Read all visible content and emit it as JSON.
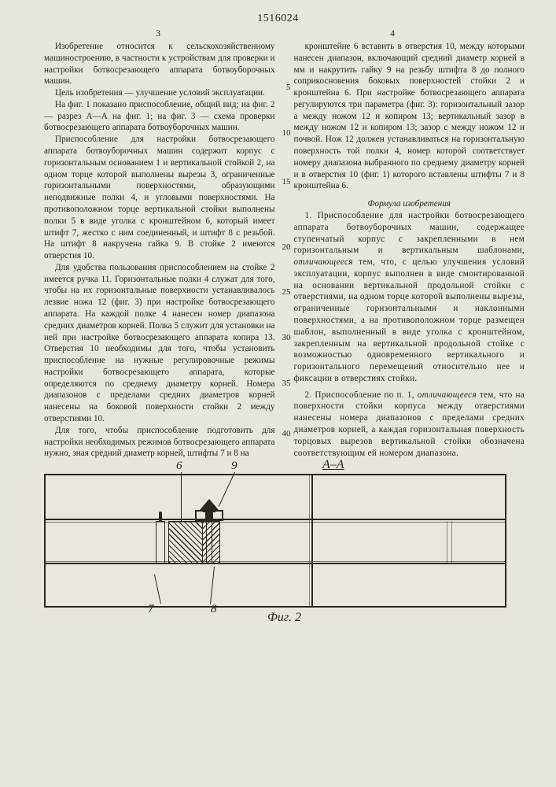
{
  "docnum": "1516024",
  "page_left": "3",
  "page_right": "4",
  "left_column": [
    "Изобретение относится к сельскохозяйственному машиностроению, в частности к устройствам для проверки и настройки ботвосрезающего аппарата ботвоуборочных машин.",
    "Цель изобретения — улучшение условий эксплуатации.",
    "На фиг. 1 показано приспособление, общий вид; на фиг. 2 — разрез А—А на фиг. 1; на фиг. 3 — схема проверки ботвосрезающего аппарата ботвоуборочных машин.",
    "Приспособление для настройки ботвосрезающего аппарата ботвоуборочных машин содержит корпус с горизонтальным основанием 1 и вертикальной стойкой 2, на одном торце которой выполнены вырезы 3, ограниченные горизонтальными поверхностями, образующими неподвижные полки 4, и угловыми поверхностями. На противоположном торце вертикальной стойки выполнены полки 5 в виде уголка с кронштейном 6, который имеет штифт 7, жестко с ним соединенный, и штифт 8 с резьбой. На штифт 8 накручена гайка 9. В стойке 2 имеются отверстия 10.",
    "Для удобства пользования приспособлением на стойке 2 имеется ручка 11. Горизонтальные полки 4 служат для того, чтобы на их горизонтальные поверхности устанавливалось лезвие ножа 12 (фиг. 3) при настройке ботвосрезающего аппарата. На каждой полке 4 нанесен номер диапазона средних диаметров корней. Полка 5 служит для установки на ней при настройке ботвосрезающего аппарата копира 13. Отверстия 10 необходимы для того, чтобы установить приспособление на нужные регулировочные режимы настройки ботвосрезающего аппарата, которые определяются по среднему диаметру корней. Номера диапазонов с пределами средних диаметров корней нанесены на боковой поверхности стойки 2 между отверстиями 10.",
    "Для того, чтобы приспособление подготовить для настройки необходимых режимов ботвосрезающего аппарата нужно, зная средний диаметр корней, штифты 7 и 8 на"
  ],
  "right_top": [
    "кронштейне 6 вставить в отверстия 10, между которыми нанесен диапазон, включающий средний диаметр корней в мм и накрутить гайку 9 на резьбу штифта 8 до полного соприкосновения боковых поверхностей стойки 2 и кронштейна 6. При настройке ботвосрезающего аппарата регулируются три параметра (фиг. 3): горизонтальный зазор а между ножом 12 и копиром 13; вертикальный зазор в между ножом 12 и копиром 13; зазор с между ножом 12 и почвой. Нож 12 должен устанавливаться на горизонтальную поверхность той полки 4, номер которой соответствует номеру диапазона выбранного по среднему диаметру корней и в отверстия 10 (фиг. 1) которого вставлены штифты 7 и 8 кронштейна 6."
  ],
  "formula_title": "Формула изобретения",
  "claims": [
    "1. Приспособление для настройки ботвосрезающего аппарата ботвоуборочных машин, содержащее ступенчатый корпус с закрепленными в нем горизонтальным и вертикальным шаблонами, <span class=\"em\">отличающееся</span> тем, что, с целью улучшения условий эксплуатации, корпус выполнен в виде смонтированной на основании вертикальной продольной стойки с отверстиями, на одном торце которой выполнены вырезы, ограниченные горизонтальными и наклонными поверхностями, а на противоположном торце размещен шаблон, выполненный в виде уголка с кронштейном, закрепленным на вертикальной продольной стойке с возможностью одновременного вертикального и горизонтального перемещений относительно нее и фиксации в отверстиях стойки.",
    "2. Приспособление по п. 1, <span class=\"em\">отличающееся</span> тем, что на поверхности стойки корпуса между отверстиями нанесены номера диапазонов с пределами средних диаметров корней, а каждая горизонтальная поверхность торцовых вырезов вертикальной стойки обозначена соответствующим ей номером диапазона."
  ],
  "linenums": {
    "5": 52,
    "10": 110,
    "15": 172,
    "20": 255,
    "25": 312,
    "30": 370,
    "35": 428,
    "40": 492
  },
  "figure": {
    "section_label": "А–А",
    "caption": "Фиг. 2",
    "callouts": [
      "6",
      "7",
      "8",
      "9"
    ],
    "colors": {
      "stroke": "#2a2722",
      "bg": "#eae6df"
    }
  }
}
